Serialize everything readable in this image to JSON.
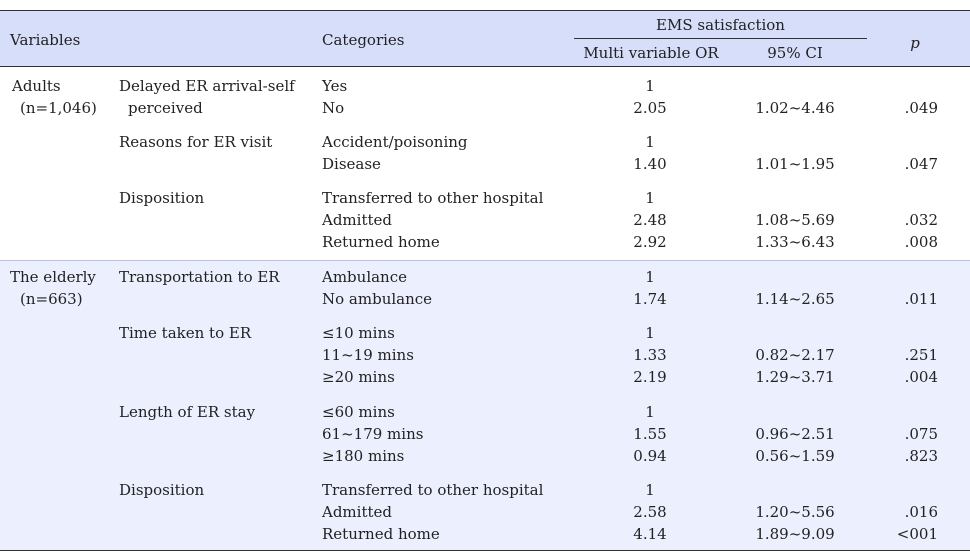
{
  "header": {
    "variables": "Variables",
    "categories": "Categories",
    "ems_satisfaction": "EMS satisfaction",
    "multi_or": "Multi variable OR",
    "ci95": "95% CI",
    "p": "p"
  },
  "adults": {
    "label": "Adults",
    "n": "(n=1,046)",
    "rows": [
      {
        "variable": "Delayed ER arrival-self",
        "variable2": "perceived",
        "cats": [
          {
            "cat": "Yes",
            "or": "1",
            "ci": "",
            "p": ""
          },
          {
            "cat": "No",
            "or": "2.05",
            "ci": "1.02~4.46",
            "p": ".049"
          }
        ]
      },
      {
        "variable": "Reasons for ER visit",
        "cats": [
          {
            "cat": "Accident/poisoning",
            "or": "1",
            "ci": "",
            "p": ""
          },
          {
            "cat": "Disease",
            "or": "1.40",
            "ci": "1.01~1.95",
            "p": ".047"
          }
        ]
      },
      {
        "variable": "Disposition",
        "cats": [
          {
            "cat": "Transferred to other hospital",
            "or": "1",
            "ci": "",
            "p": ""
          },
          {
            "cat": "Admitted",
            "or": "2.48",
            "ci": "1.08~5.69",
            "p": ".032"
          },
          {
            "cat": "Returned home",
            "or": "2.92",
            "ci": "1.33~6.43",
            "p": ".008"
          }
        ]
      }
    ]
  },
  "elderly": {
    "label": "The elderly",
    "n": "(n=663)",
    "rows": [
      {
        "variable": "Transportation to ER",
        "cats": [
          {
            "cat": "Ambulance",
            "or": "1",
            "ci": "",
            "p": ""
          },
          {
            "cat": "No ambulance",
            "or": "1.74",
            "ci": "1.14~2.65",
            "p": ".011"
          }
        ]
      },
      {
        "variable": "Time taken to ER",
        "cats": [
          {
            "cat": "≤10 mins",
            "or": "1",
            "ci": "",
            "p": ""
          },
          {
            "cat": "11~19 mins",
            "or": "1.33",
            "ci": "0.82~2.17",
            "p": ".251"
          },
          {
            "cat": "≥20 mins",
            "or": "2.19",
            "ci": "1.29~3.71",
            "p": ".004"
          }
        ]
      },
      {
        "variable": "Length of ER stay",
        "cats": [
          {
            "cat": "≤60 mins",
            "or": "1",
            "ci": "",
            "p": ""
          },
          {
            "cat": "61~179 mins",
            "or": "1.55",
            "ci": "0.96~2.51",
            "p": ".075"
          },
          {
            "cat": "≥180 mins",
            "or": "0.94",
            "ci": "0.56~1.59",
            "p": ".823"
          }
        ]
      },
      {
        "variable": "Disposition",
        "cats": [
          {
            "cat": "Transferred to other hospital",
            "or": "1",
            "ci": "",
            "p": ""
          },
          {
            "cat": "Admitted",
            "or": "2.58",
            "ci": "1.20~5.56",
            "p": ".016"
          },
          {
            "cat": "Returned home",
            "or": "4.14",
            "ci": "1.89~9.09",
            "p": "<001"
          }
        ]
      }
    ]
  }
}
